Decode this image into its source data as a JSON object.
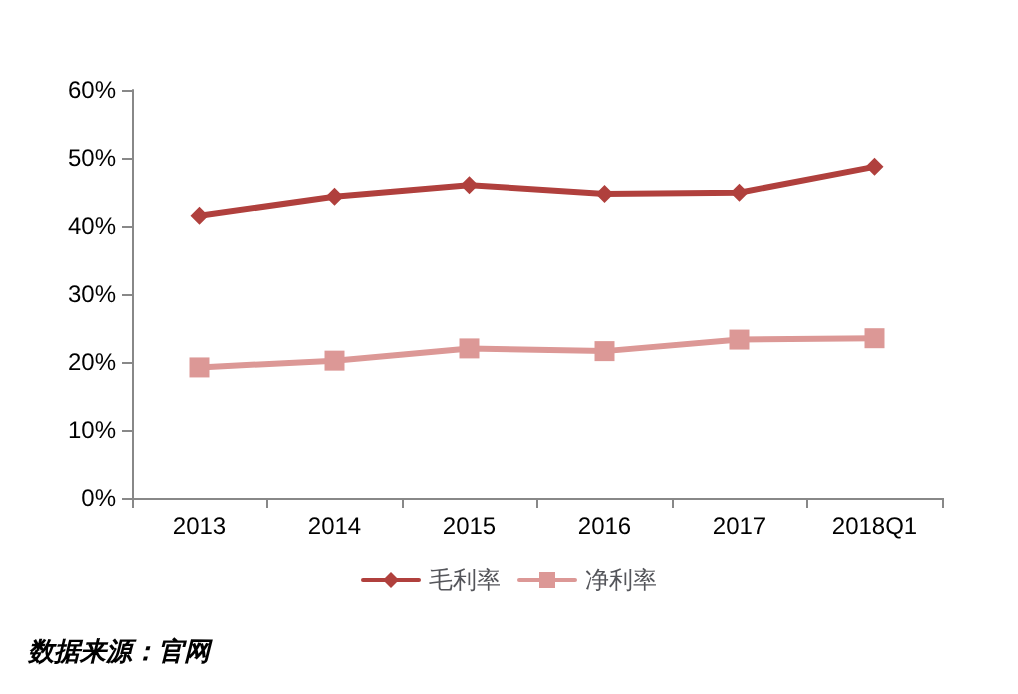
{
  "chart_data": {
    "type": "line",
    "categories": [
      "2013",
      "2014",
      "2015",
      "2016",
      "2017",
      "2018Q1"
    ],
    "series": [
      {
        "name": "毛利率",
        "color": "#b0403d",
        "marker": "diamond",
        "values": [
          41.5,
          44.3,
          46.0,
          44.7,
          44.9,
          48.7
        ]
      },
      {
        "name": "净利率",
        "color": "#dc9896",
        "marker": "square",
        "values": [
          19.2,
          20.2,
          22.0,
          21.6,
          23.3,
          23.5
        ]
      }
    ],
    "ylim": [
      0,
      60
    ],
    "yticks": [
      {
        "value": 0,
        "label": "0%"
      },
      {
        "value": 10,
        "label": "10%"
      },
      {
        "value": 20,
        "label": "20%"
      },
      {
        "value": 30,
        "label": "30%"
      },
      {
        "value": 40,
        "label": "40%"
      },
      {
        "value": 50,
        "label": "50%"
      },
      {
        "value": 60,
        "label": "60%"
      }
    ],
    "grid": false,
    "legend": "bottom",
    "line_style": "solid",
    "annotations": [
      "数据来源：官网"
    ]
  }
}
